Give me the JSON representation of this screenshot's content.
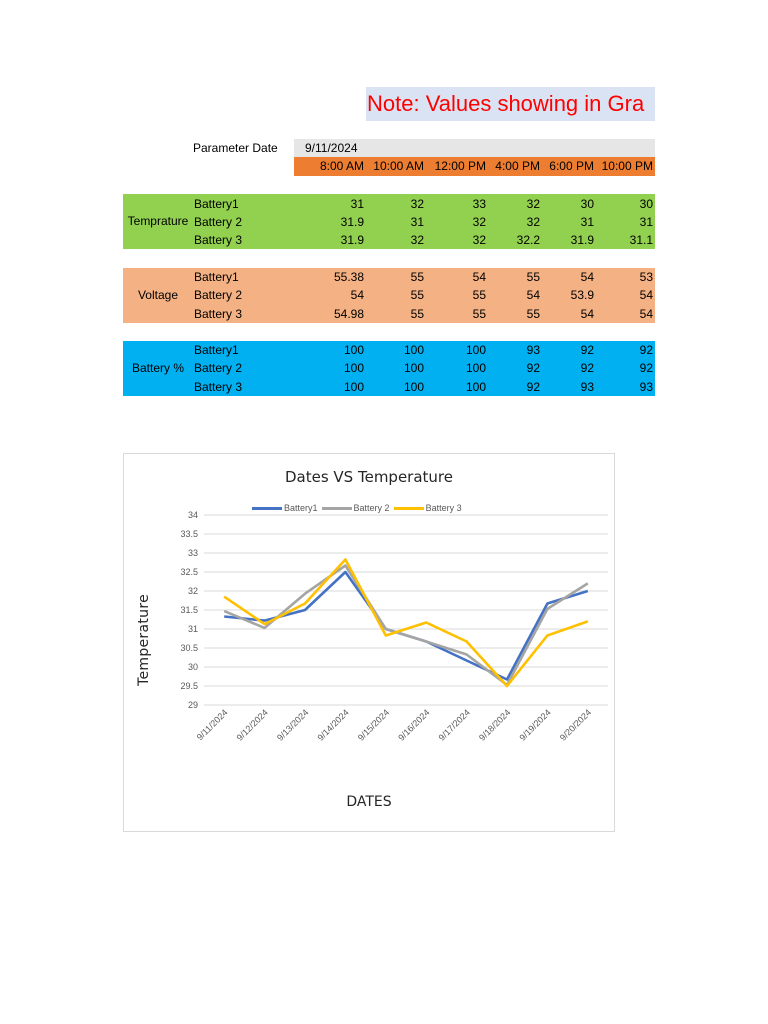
{
  "note": {
    "text": "Note: Values showing in Gra"
  },
  "header": {
    "parameter_label": "Parameter  Date",
    "date": "9/11/2024",
    "times": [
      "8:00 AM",
      "10:00 AM",
      "12:00 PM",
      "4:00 PM",
      "6:00 PM",
      "10:00 PM"
    ]
  },
  "groups": [
    {
      "label": "Temprature",
      "color": "#92d050",
      "rows": [
        {
          "name": "Battery1",
          "values": [
            "31",
            "32",
            "33",
            "32",
            "30",
            "30"
          ]
        },
        {
          "name": "Battery 2",
          "values": [
            "31.9",
            "31",
            "32",
            "32",
            "31",
            "31"
          ]
        },
        {
          "name": "Battery 3",
          "values": [
            "31.9",
            "32",
            "32",
            "32.2",
            "31.9",
            "31.1"
          ]
        }
      ]
    },
    {
      "label": "Voltage",
      "color": "#f4b183",
      "rows": [
        {
          "name": "Battery1",
          "values": [
            "55.38",
            "55",
            "54",
            "55",
            "54",
            "53"
          ]
        },
        {
          "name": "Battery 2",
          "values": [
            "54",
            "55",
            "55",
            "54",
            "53.9",
            "54"
          ]
        },
        {
          "name": "Battery 3",
          "values": [
            "54.98",
            "55",
            "55",
            "55",
            "54",
            "54"
          ]
        }
      ]
    },
    {
      "label": "Battery %",
      "color": "#00b0f0",
      "rows": [
        {
          "name": "Battery1",
          "values": [
            "100",
            "100",
            "100",
            "93",
            "92",
            "92"
          ]
        },
        {
          "name": "Battery 2",
          "values": [
            "100",
            "100",
            "100",
            "92",
            "92",
            "92"
          ]
        },
        {
          "name": "Battery 3",
          "values": [
            "100",
            "100",
            "100",
            "92",
            "93",
            "93"
          ]
        }
      ]
    }
  ],
  "chart_data": {
    "type": "line",
    "title": "Dates VS Temperature",
    "xlabel": "DATES",
    "ylabel": "Temperature",
    "categories": [
      "9/11/2024",
      "9/12/2024",
      "9/13/2024",
      "9/14/2024",
      "9/15/2024",
      "9/16/2024",
      "9/17/2024",
      "9/18/2024",
      "9/19/2024",
      "9/20/2024"
    ],
    "yticks": [
      "34",
      "33.5",
      "33",
      "32.5",
      "32",
      "31.5",
      "31",
      "30.5",
      "30",
      "29.5",
      "29"
    ],
    "ylim": [
      29,
      34
    ],
    "grid": true,
    "legend_position": "top",
    "series": [
      {
        "name": "Battery1",
        "color": "#4472c4",
        "values": [
          31.33,
          31.22,
          31.5,
          32.5,
          31.0,
          30.67,
          30.17,
          29.67,
          31.67,
          32.0
        ]
      },
      {
        "name": "Battery 2",
        "color": "#a5a5a5",
        "values": [
          31.47,
          31.03,
          31.93,
          32.67,
          31.0,
          30.67,
          30.33,
          29.53,
          31.53,
          32.2
        ]
      },
      {
        "name": "Battery 3",
        "color": "#ffc000",
        "values": [
          31.85,
          31.13,
          31.67,
          32.83,
          30.83,
          31.17,
          30.67,
          29.5,
          30.83,
          31.2
        ]
      }
    ]
  }
}
